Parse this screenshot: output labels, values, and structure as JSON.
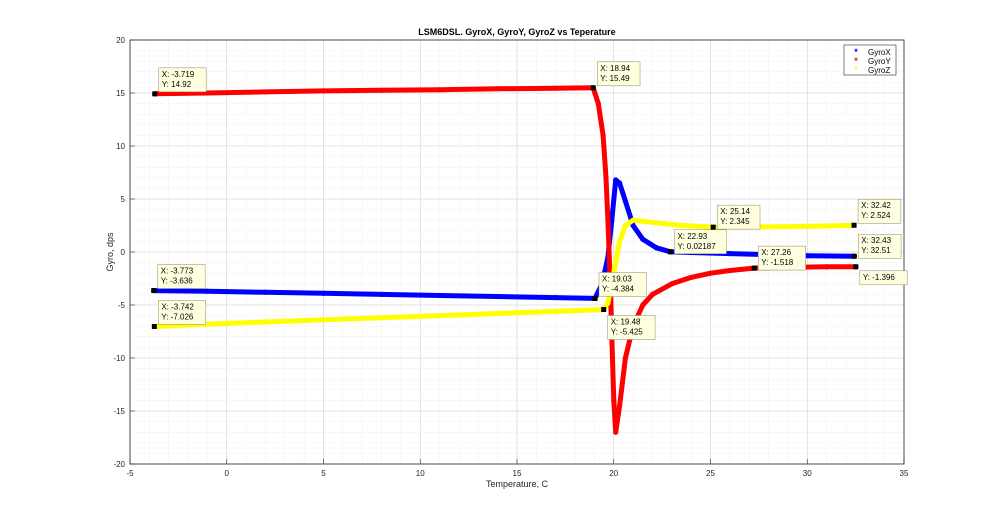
{
  "chart_data": {
    "type": "scatter",
    "title": "LSM6DSL. GyroX, GyroY, GyroZ vs Teperature",
    "xlabel": "Temperature, C",
    "ylabel": "Gyro, dps",
    "xlim": [
      -5,
      35
    ],
    "ylim": [
      -20,
      20
    ],
    "xticks": [
      -5,
      0,
      5,
      10,
      15,
      20,
      25,
      30,
      35
    ],
    "yticks": [
      -20,
      -15,
      -10,
      -5,
      0,
      5,
      10,
      15,
      20
    ],
    "grid": true,
    "minor_grid": true,
    "legend_position": "top-right",
    "series": [
      {
        "name": "GyroX",
        "color": "#0000ff",
        "x": [
          -3.77,
          -1,
          2,
          5,
          8,
          11,
          14,
          17,
          19.03,
          19.4,
          19.7,
          19.9,
          20.1,
          20.3,
          20.6,
          21,
          21.5,
          22.2,
          22.93,
          24,
          26,
          28,
          30,
          32.43
        ],
        "y": [
          -3.64,
          -3.7,
          -3.8,
          -3.9,
          -4.0,
          -4.1,
          -4.2,
          -4.3,
          -4.38,
          -3.0,
          -0.5,
          3.0,
          6.8,
          6.5,
          4.8,
          2.5,
          1.2,
          0.4,
          0.02,
          -0.05,
          -0.15,
          -0.25,
          -0.35,
          -0.4
        ]
      },
      {
        "name": "GyroY",
        "color": "#ff0000",
        "x": [
          -3.72,
          -1,
          2,
          5,
          8,
          11,
          14,
          17,
          18.94,
          19.2,
          19.45,
          19.6,
          19.7,
          19.8,
          19.9,
          20.0,
          20.1,
          20.3,
          20.6,
          21,
          21.5,
          22,
          23,
          24,
          25,
          26,
          27.26,
          29,
          31,
          32.51
        ],
        "y": [
          14.92,
          15.0,
          15.1,
          15.2,
          15.25,
          15.3,
          15.4,
          15.45,
          15.49,
          14.0,
          11.0,
          7.0,
          3.0,
          -2.0,
          -8.0,
          -14.0,
          -17.0,
          -14.5,
          -10.0,
          -7.0,
          -5.0,
          -4.0,
          -3.0,
          -2.4,
          -2.0,
          -1.75,
          -1.52,
          -1.45,
          -1.4,
          -1.4
        ]
      },
      {
        "name": "GyroZ",
        "color": "#ffff00",
        "x": [
          -3.74,
          -1,
          2,
          5,
          8,
          11,
          14,
          17,
          19.48,
          19.7,
          19.9,
          20.1,
          20.3,
          20.6,
          21,
          21.5,
          22.5,
          23.5,
          25.14,
          27,
          29,
          31,
          32.42
        ],
        "y": [
          -7.03,
          -6.8,
          -6.6,
          -6.4,
          -6.2,
          -6.0,
          -5.8,
          -5.6,
          -5.43,
          -4.8,
          -3.0,
          -1.0,
          1.0,
          2.5,
          3.0,
          2.9,
          2.7,
          2.5,
          2.35,
          2.35,
          2.4,
          2.45,
          2.52
        ]
      }
    ],
    "datatips": [
      {
        "x_label": "X: -3.719",
        "y_label": "Y: 14.92",
        "x": -3.719,
        "y": 14.92
      },
      {
        "x_label": "X: 18.94",
        "y_label": "Y: 15.49",
        "x": 18.94,
        "y": 15.49
      },
      {
        "x_label": "X: -3.773",
        "y_label": "Y: -3.636",
        "x": -3.773,
        "y": -3.636
      },
      {
        "x_label": "X: -3.742",
        "y_label": "Y: -7.026",
        "x": -3.742,
        "y": -7.026
      },
      {
        "x_label": "X: 19.03",
        "y_label": "Y: -4.384",
        "x": 19.03,
        "y": -4.384
      },
      {
        "x_label": "X: 19.48",
        "y_label": "Y: -5.425",
        "x": 19.48,
        "y": -5.425
      },
      {
        "x_label": "X: 22.93",
        "y_label": "Y: 0.02187",
        "x": 22.93,
        "y": 0.02187
      },
      {
        "x_label": "X: 25.14",
        "y_label": "Y: 2.345",
        "x": 25.14,
        "y": 2.345
      },
      {
        "x_label": "X: 27.26",
        "y_label": "Y: -1.518",
        "x": 27.26,
        "y": -1.518
      },
      {
        "x_label": "X: 32.42",
        "y_label": "Y: 2.524",
        "x": 32.42,
        "y": 2.524
      },
      {
        "x_label": "X: 32.43",
        "y_label": "Y: 32.51",
        "x": 32.43,
        "y": -0.4
      },
      {
        "x_label": "Y: -1.396",
        "y_label": "",
        "x": 32.51,
        "y": -1.396
      }
    ]
  }
}
